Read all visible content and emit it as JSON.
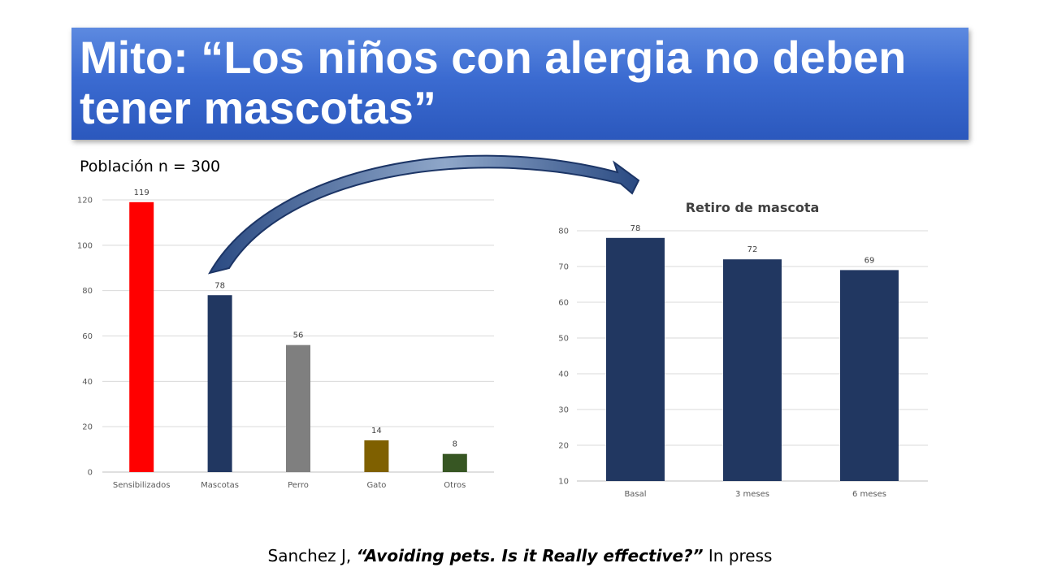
{
  "slide": {
    "title_line1": "Mito: “Los niños con alergia no deben",
    "title_line2": "tener mascotas”",
    "population_label": "Población n = 300",
    "citation_prefix": "Sanchez J, ",
    "citation_title": "“Avoiding pets. Is it Really effective?”",
    "citation_suffix": " In press"
  },
  "chart_data": [
    {
      "type": "bar",
      "title": "",
      "categories": [
        "Sensibilizados",
        "Mascotas",
        "Perro",
        "Gato",
        "Otros"
      ],
      "values": [
        119,
        78,
        56,
        14,
        8
      ],
      "data_labels": [
        "119",
        "78",
        "56",
        "14",
        "8"
      ],
      "colors": [
        "#ff0000",
        "#213761",
        "#7f7f7f",
        "#7f6000",
        "#375623"
      ],
      "ylim": [
        0,
        120
      ],
      "yticks": [
        "0",
        "20",
        "40",
        "60",
        "80",
        "100",
        "120"
      ],
      "grid": true,
      "xlabel": "",
      "ylabel": ""
    },
    {
      "type": "bar",
      "title": "Retiro de mascota",
      "categories": [
        "Basal",
        "3 meses",
        "6 meses"
      ],
      "values": [
        78,
        72,
        69
      ],
      "data_labels": [
        "78",
        "72",
        "69"
      ],
      "colors": [
        "#213761",
        "#213761",
        "#213761"
      ],
      "ylim": [
        10,
        80
      ],
      "yticks": [
        "10",
        "20",
        "30",
        "40",
        "50",
        "60",
        "70",
        "80"
      ],
      "grid": true,
      "xlabel": "",
      "ylabel": ""
    }
  ],
  "arrow": {
    "color": "#213761",
    "icon": "curved-arrow-icon"
  }
}
